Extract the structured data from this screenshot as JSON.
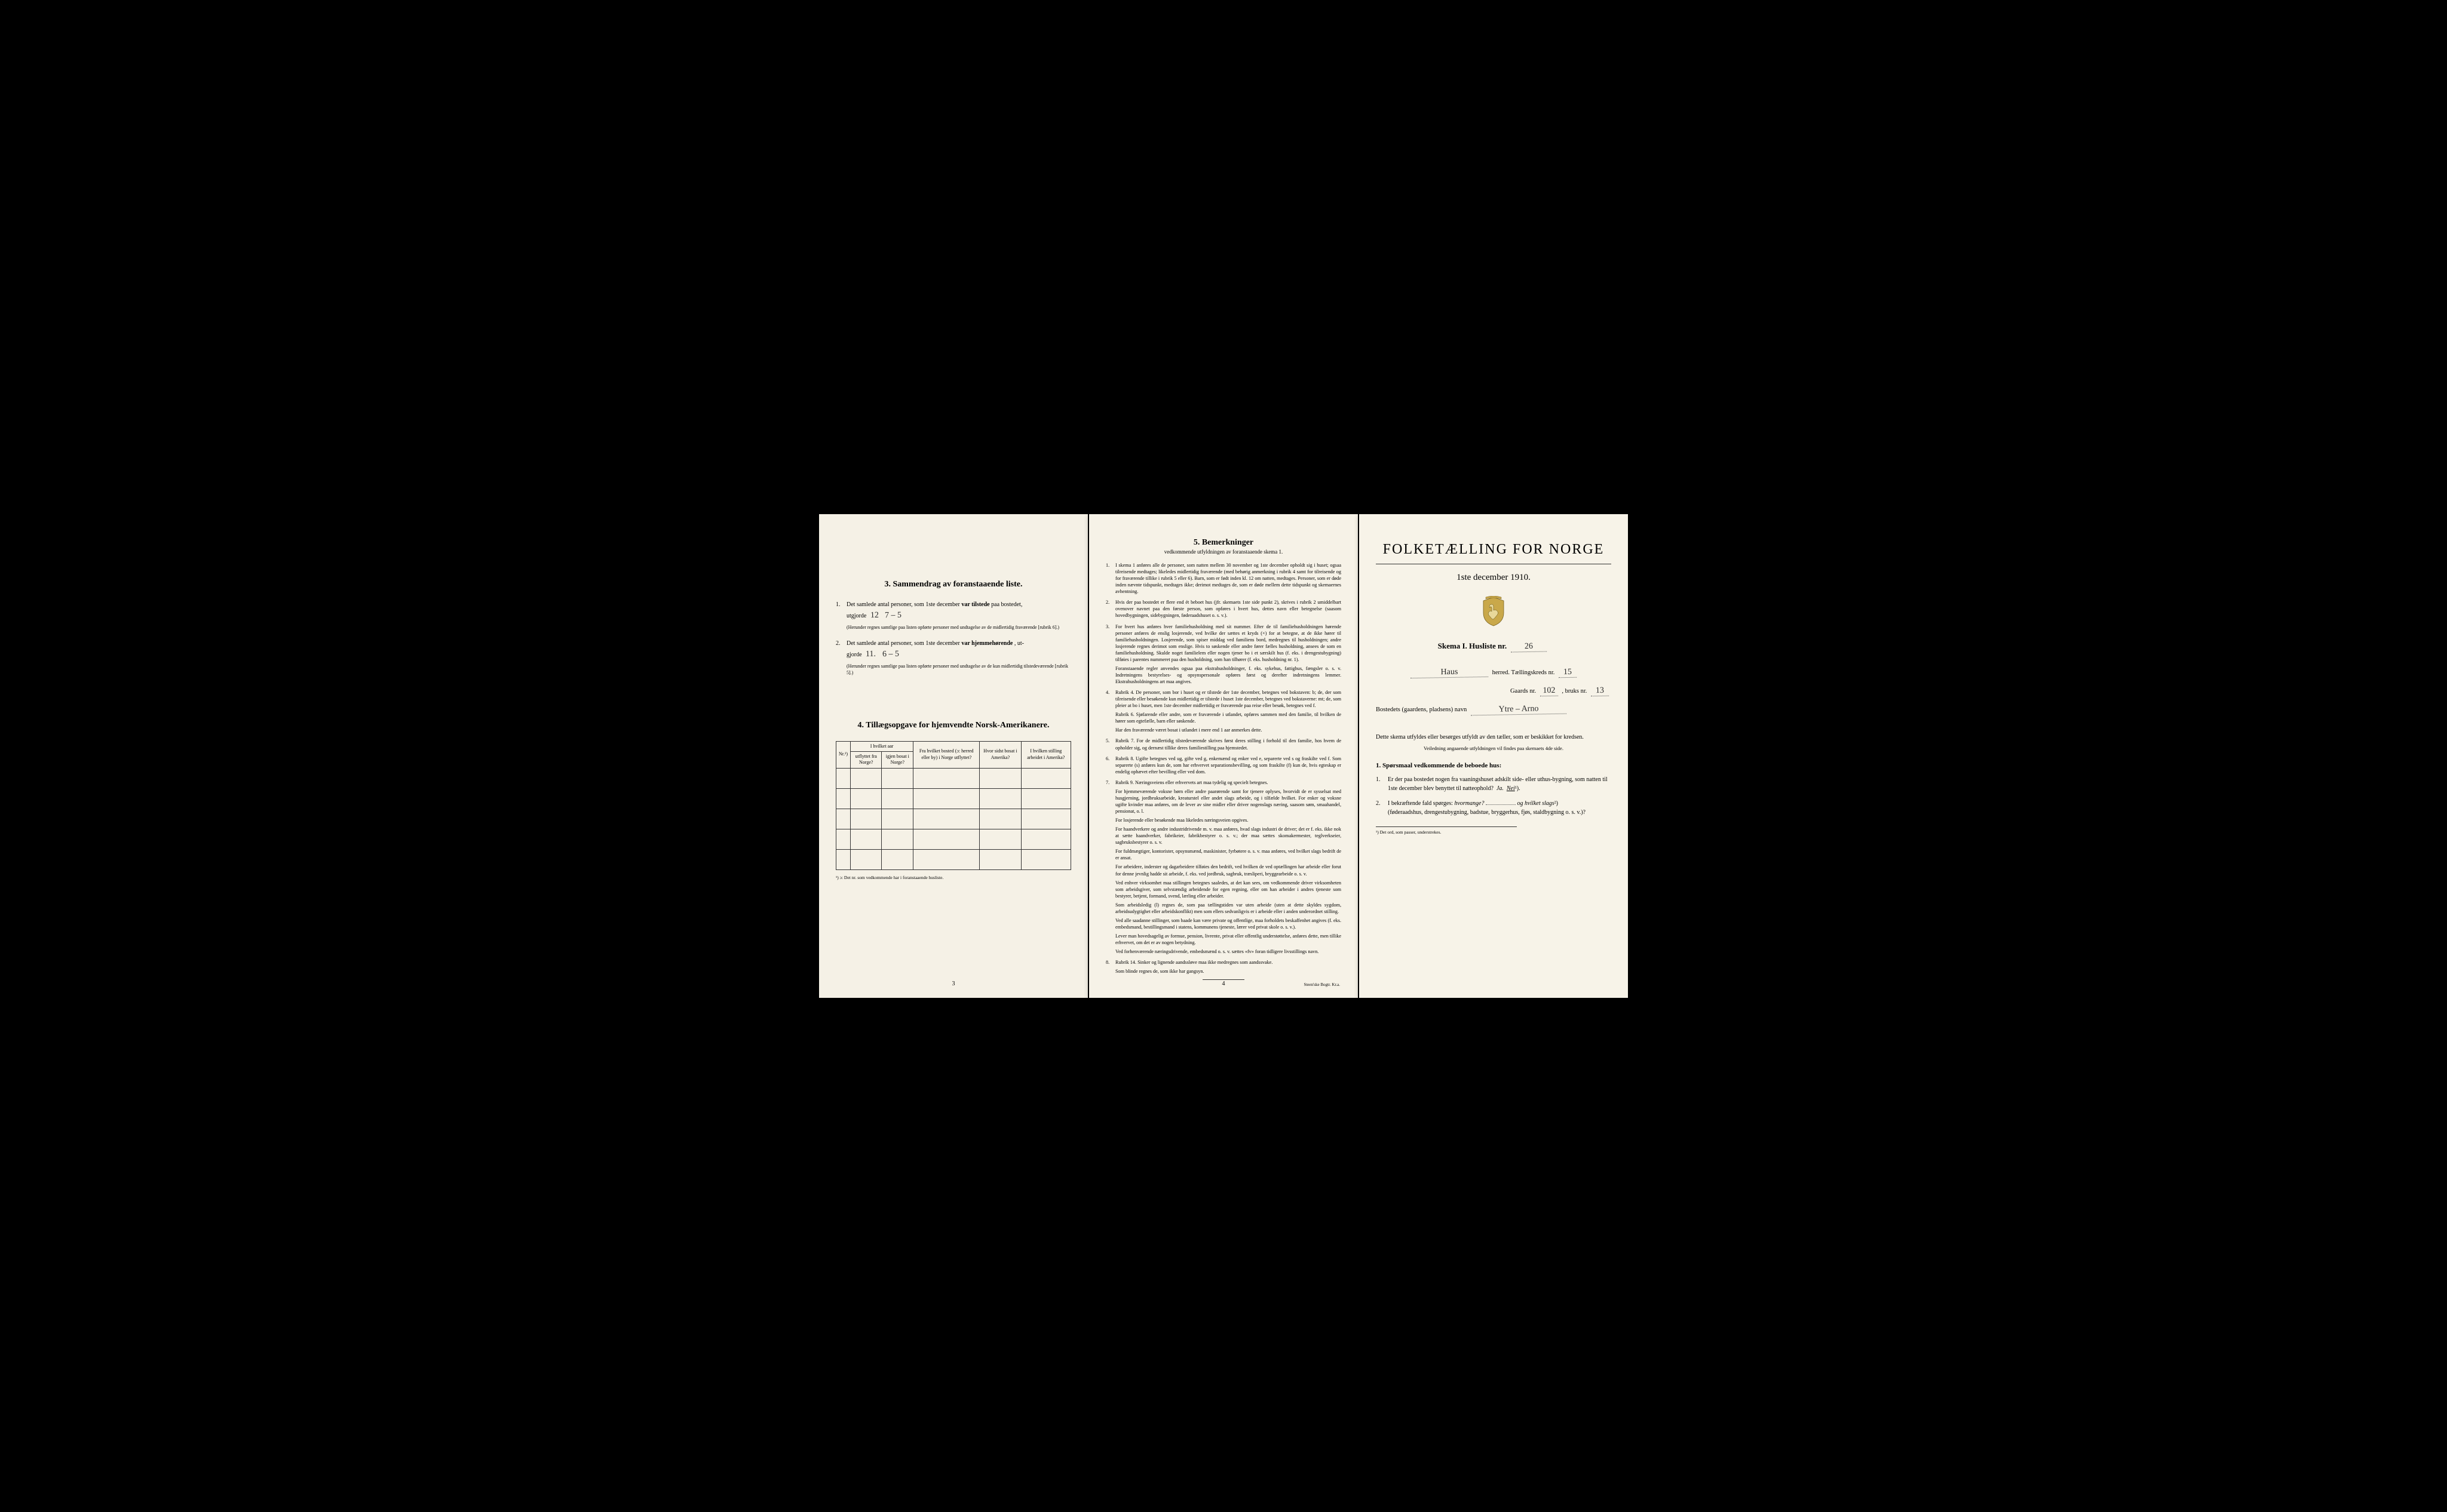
{
  "page1": {
    "section3": {
      "title": "3. Sammendrag av foranstaaende liste.",
      "item1_pre": "Det samlede antal personer, som 1ste december",
      "item1_bold": "var tilstede",
      "item1_post": "paa bostedet,",
      "item1_line2": "utgjorde",
      "item1_hand1": "12",
      "item1_hand2": "7 – 5",
      "item1_note": "(Herunder regnes samtlige paa listen opførte personer med undtagelse av de midlertidig fraværende [rubrik 6].)",
      "item2_pre": "Det samlede antal personer, som 1ste december",
      "item2_bold": "var hjemmehørende",
      "item2_post": ", ut-",
      "item2_line2": "gjorde",
      "item2_hand1": "11.",
      "item2_hand2": "6 – 5",
      "item2_note": "(Herunder regnes samtlige paa listen opførte personer med undtagelse av de kun midlertidig tilstedeværende [rubrik 5].)"
    },
    "section4": {
      "title": "4. Tillægsopgave for hjemvendte Norsk-Amerikanere.",
      "headers": {
        "h1": "Nr.¹)",
        "h2_span": "I hvilket aar",
        "h2a": "utflyttet fra Norge?",
        "h2b": "igjen bosat i Norge?",
        "h3": "Fra hvilket bosted (ɔ: herred eller by) i Norge utflyttet?",
        "h4": "Hvor sidst bosat i Amerika?",
        "h5": "I hvilken stilling arbeidet i Amerika?"
      },
      "footnote": "¹) ɔ: Det nr. som vedkommende har i foranstaaende husliste.",
      "blank_rows": 5
    },
    "pagenum": "3"
  },
  "page2": {
    "title": "5. Bemerkninger",
    "subtitle": "vedkommende utfyldningen av foranstaaende skema 1.",
    "remarks": [
      {
        "n": "1.",
        "text": "I skema 1 anføres alle de personer, som natten mellem 30 november og 1ste december opholdt sig i huset; ogsaa tilreisende medtages; likeledes midlertidig fraværende (med behørig anmerkning i rubrik 4 samt for tilreisende og for fraværende tillike i rubrik 5 eller 6). Barn, som er født inden kl. 12 om natten, medtages. Personer, som er døde inden nævnte tidspunkt, medtages ikke; derimot medtages de, som er døde mellem dette tidspunkt og skemaernes avhentning."
      },
      {
        "n": "2.",
        "text": "Hvis der paa bostedet er flere end ét beboet hus (jfr. skemaets 1ste side punkt 2), skrives i rubrik 2 umiddelbart ovenover navnet paa den første person, som opføres i hvert hus, dettes navn eller betegnelse (saasom hovedbygningen, sidebygningen, føderaadshuset o. s. v.)."
      },
      {
        "n": "3.",
        "text": "For hvert hus anføres hver familiehusholdning med sit nummer. Efter de til familiehusholdningen hørende personer anføres de enslig losjerende, ved hvilke der sættes et kryds (×) for at betegne, at de ikke hører til familiehusholdningen. Losjerende, som spiser middag ved familiens bord, medregnes til husholdningen; andre losjerende regnes derimot som enslige. Hvis to søskende eller andre fører fælles husholdning, ansees de som en familiehusholdning. Skulde noget familielem eller nogen tjener bo i et særskilt hus (f. eks. i drengestubygning) tilføies i parentes nummeret paa den husholdning, som han tilhører (f. eks. husholdning nr. 1).",
        "paras": [
          "Foranstaaende regler anvendes ogsaa paa ekstrahusholdninger, f. eks. sykehus, fattighus, fængsler o. s. v. Indretningens bestyrelses- og opsynspersonale opføres først og derefter indretningens lemmer. Ekstrahusholdningens art maa angives."
        ]
      },
      {
        "n": "4.",
        "text": "Rubrik 4. De personer, som bor i huset og er tilstede der 1ste december, betegnes ved bokstaven: b; de, der som tilreisende eller besøkende kun midlertidig er tilstede i huset 1ste december, betegnes ved bokstaverne: mt; de, som pleier at bo i huset, men 1ste december midlertidig er fraværende paa reise eller besøk, betegnes ved f.",
        "paras": [
          "Rubrik 6. Sjøfarende eller andre, som er fraværende i utlandet, opføres sammen med den familie, til hvilken de hører som egtefælle, barn eller søskende.",
          "Har den fraværende været bosat i utlandet i mere end 1 aar anmerkes dette."
        ]
      },
      {
        "n": "5.",
        "text": "Rubrik 7. For de midlertidig tilstedeværende skrives først deres stilling i forhold til den familie, hos hvem de opholder sig, og dernæst tillike deres familiestilling paa hjemstedet."
      },
      {
        "n": "6.",
        "text": "Rubrik 8. Ugifte betegnes ved ug, gifte ved g, enkemænd og enker ved e, separerte ved s og fraskilte ved f. Som separerte (s) anføres kun de, som har erhvervet separationsbevilling, og som fraskilte (f) kun de, hvis egteskap er endelig ophævet efter bevilling eller ved dom."
      },
      {
        "n": "7.",
        "text": "Rubrik 9. Næringsveiens eller erhvervets art maa tydelig og specielt betegnes.",
        "paras": [
          "For hjemmeværende voksne børn eller andre paarørende samt for tjenere oplyses, hvorvidt de er sysselsat med husgjerning, jordbruksarbeide, kreaturstel eller andet slags arbeide, og i tilfælde hvilket. For enker og voksne ugifte kvinder maa anføres, om de lever av sine midler eller driver nogenslags næring, saasom søm, smaahandel, pensionat, o. l.",
          "For losjerende eller besøkende maa likeledes næringsveien opgives.",
          "For haandverkere og andre industridrivende m. v. maa anføres, hvad slags industri de driver; det er f. eks. ikke nok at sætte haandverker, fabrikeier, fabrikbestyrer o. s. v.; der maa sættes skomakermester, teglverkseier, sagbruksbestyrer o. s. v.",
          "For fuldmægtiger, kontorister, opsynsmænd, maskinister, fyrbøtere o. s. v. maa anføres, ved hvilket slags bedrift de er ansat.",
          "For arbeidere, inderster og dagarbeidere tilføies den bedrift, ved hvilken de ved optællingen har arbeide eller forut for denne jevnlig hadde sit arbeide, f. eks. ved jordbruk, sagbruk, træsliperi, bryggearbeide o. s. v.",
          "Ved enhver virksomhet maa stillingen betegnes saaledes, at det kan sees, om vedkommende driver virksomheten som arbeidsgiver, som selvstændig arbeidende for egen regning, eller om han arbeider i andres tjeneste som bestyrer, betjent, formand, svend, lærling eller arbeider.",
          "Som arbeidsledig (l) regnes de, som paa tællingstiden var uten arbeide (uten at dette skyldes sygdom, arbeidsudygtighet eller arbeidskonflikt) men som ellers sedvanligvis er i arbeide eller i anden underordnet stilling.",
          "Ved alle saadanne stillinger, som baade kan være private og offentlige, maa forholdets beskaffenhet angives (f. eks. embedsmand, bestillingsmand i statens, kommunens tjeneste, lærer ved privat skole o. s. v.).",
          "Lever man hovedsagelig av formue, pension, livrente, privat eller offentlig understøttelse, anføres dette, men tillike erhvervet, om det er av nogen betydning.",
          "Ved forhenværende næringsdrivende, embedsmænd o. s. v. sættes «fv» foran tidligere livsstillings navn."
        ]
      },
      {
        "n": "8.",
        "text": "Rubrik 14. Sinker og lignende aandssløve maa ikke medregnes som aandssvake.",
        "paras": [
          "Som blinde regnes de, som ikke har gangsyn."
        ]
      }
    ],
    "pagenum": "4",
    "printer": "Steen'ske Bogtr.  Kr.a."
  },
  "page3": {
    "main_title": "FOLKETÆLLING FOR NORGE",
    "date": "1ste december 1910.",
    "skema": "Skema I.  Husliste nr.",
    "skema_num": "26",
    "herred_hand": "Haus",
    "herred_label": "herred.  Tællingskreds nr.",
    "kreds_num": "15",
    "gaards_label": "Gaards nr.",
    "gaards_num": "102",
    "bruks_label": ", bruks nr.",
    "bruks_num": "13",
    "bosted_label": "Bostedets (gaardens, pladsens) navn",
    "bosted_hand": "Ytre – Arno",
    "desc": "Dette skema utfyldes eller besørges utfyldt av den tæller, som er beskikket for kredsen.",
    "desc_sub": "Veiledning angaaende utfyldningen vil findes paa skemaets 4de side.",
    "q_head": "1. Spørsmaal vedkommende de beboede hus:",
    "q1": "Er der paa bostedet nogen fra vaaningshuset adskilt side- eller uthus-bygning, som natten til 1ste december blev benyttet til natteophold?",
    "q1_ja": "Ja.",
    "q1_nei": "Nei",
    "q1_sup": "¹).",
    "q2_pre": "I bekræftende fald spørges:",
    "q2_hvor": "hvormange?",
    "q2_og": "og hvilket slags",
    "q2_sup": "²)",
    "q2_list": "(føderaadshus, drengestubygning, badstue, bryggerhus, fjøs, staldbygning o. s. v.)?",
    "foot": "¹) Det ord, som passer, understrekes."
  }
}
